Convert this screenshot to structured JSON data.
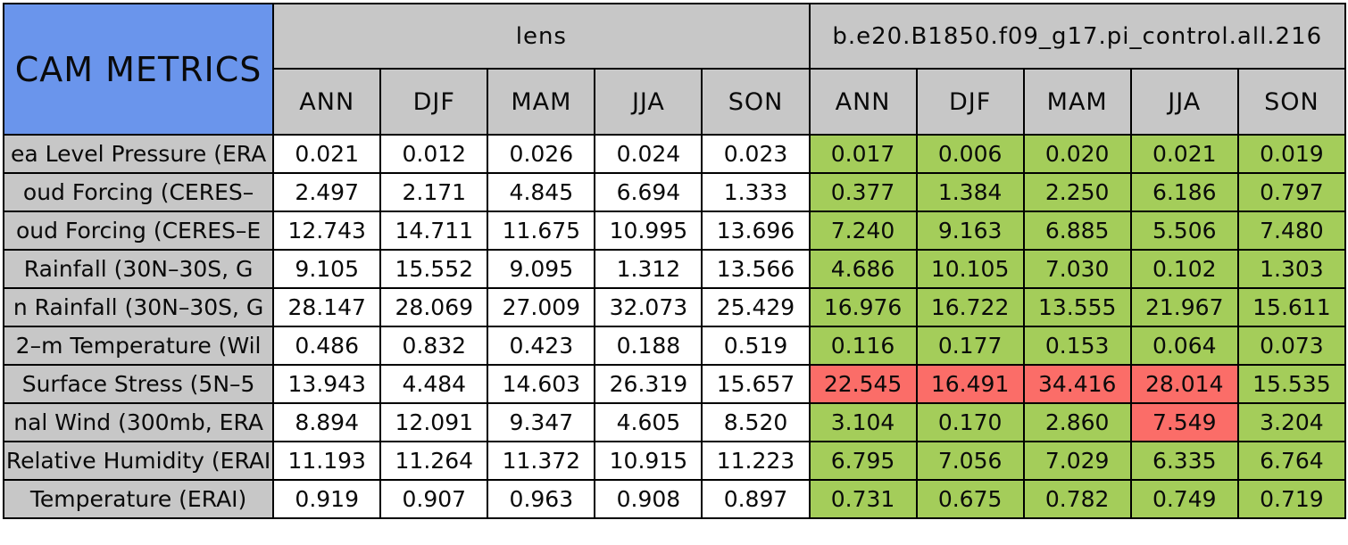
{
  "colors": {
    "title_bg": "#6a95ec",
    "header_bg": "#c7c7c7",
    "cell_bg": "#ffffff",
    "good_bg": "#a4cd5a",
    "bad_bg": "#fb6d68",
    "border": "#000000"
  },
  "chart_data": {
    "type": "table",
    "title": "CAM METRICS",
    "column_groups": [
      "lens",
      "b.e20.B1850.f09_g17.pi_control.all.216"
    ],
    "columns": [
      "ANN",
      "DJF",
      "MAM",
      "JJA",
      "SON"
    ],
    "highlight_legend": {
      "good": "green cell",
      "bad": "red cell"
    },
    "rows": [
      {
        "label": "ea Level Pressure (ERA",
        "lens": [
          "0.021",
          "0.012",
          "0.026",
          "0.024",
          "0.023"
        ],
        "control": [
          "0.017",
          "0.006",
          "0.020",
          "0.021",
          "0.019"
        ],
        "control_status": [
          "good",
          "good",
          "good",
          "good",
          "good"
        ]
      },
      {
        "label": "oud Forcing (CERES–",
        "lens": [
          "2.497",
          "2.171",
          "4.845",
          "6.694",
          "1.333"
        ],
        "control": [
          "0.377",
          "1.384",
          "2.250",
          "6.186",
          "0.797"
        ],
        "control_status": [
          "good",
          "good",
          "good",
          "good",
          "good"
        ]
      },
      {
        "label": "oud Forcing (CERES–E",
        "lens": [
          "12.743",
          "14.711",
          "11.675",
          "10.995",
          "13.696"
        ],
        "control": [
          "7.240",
          "9.163",
          "6.885",
          "5.506",
          "7.480"
        ],
        "control_status": [
          "good",
          "good",
          "good",
          "good",
          "good"
        ]
      },
      {
        "label": "Rainfall (30N–30S, G",
        "lens": [
          "9.105",
          "15.552",
          "9.095",
          "1.312",
          "13.566"
        ],
        "control": [
          "4.686",
          "10.105",
          "7.030",
          "0.102",
          "1.303"
        ],
        "control_status": [
          "good",
          "good",
          "good",
          "good",
          "good"
        ]
      },
      {
        "label": "n Rainfall (30N–30S, G",
        "lens": [
          "28.147",
          "28.069",
          "27.009",
          "32.073",
          "25.429"
        ],
        "control": [
          "16.976",
          "16.722",
          "13.555",
          "21.967",
          "15.611"
        ],
        "control_status": [
          "good",
          "good",
          "good",
          "good",
          "good"
        ]
      },
      {
        "label": "2–m Temperature (Wil",
        "lens": [
          "0.486",
          "0.832",
          "0.423",
          "0.188",
          "0.519"
        ],
        "control": [
          "0.116",
          "0.177",
          "0.153",
          "0.064",
          "0.073"
        ],
        "control_status": [
          "good",
          "good",
          "good",
          "good",
          "good"
        ]
      },
      {
        "label": "Surface Stress (5N–5",
        "lens": [
          "13.943",
          "4.484",
          "14.603",
          "26.319",
          "15.657"
        ],
        "control": [
          "22.545",
          "16.491",
          "34.416",
          "28.014",
          "15.535"
        ],
        "control_status": [
          "bad",
          "bad",
          "bad",
          "bad",
          "good"
        ]
      },
      {
        "label": "nal Wind (300mb, ERA",
        "lens": [
          "8.894",
          "12.091",
          "9.347",
          "4.605",
          "8.520"
        ],
        "control": [
          "3.104",
          "0.170",
          "2.860",
          "7.549",
          "3.204"
        ],
        "control_status": [
          "good",
          "good",
          "good",
          "bad",
          "good"
        ]
      },
      {
        "label": "Relative Humidity (ERAI",
        "lens": [
          "11.193",
          "11.264",
          "11.372",
          "10.915",
          "11.223"
        ],
        "control": [
          "6.795",
          "7.056",
          "7.029",
          "6.335",
          "6.764"
        ],
        "control_status": [
          "good",
          "good",
          "good",
          "good",
          "good"
        ]
      },
      {
        "label": "Temperature (ERAI)",
        "lens": [
          "0.919",
          "0.907",
          "0.963",
          "0.908",
          "0.897"
        ],
        "control": [
          "0.731",
          "0.675",
          "0.782",
          "0.749",
          "0.719"
        ],
        "control_status": [
          "good",
          "good",
          "good",
          "good",
          "good"
        ]
      }
    ]
  }
}
